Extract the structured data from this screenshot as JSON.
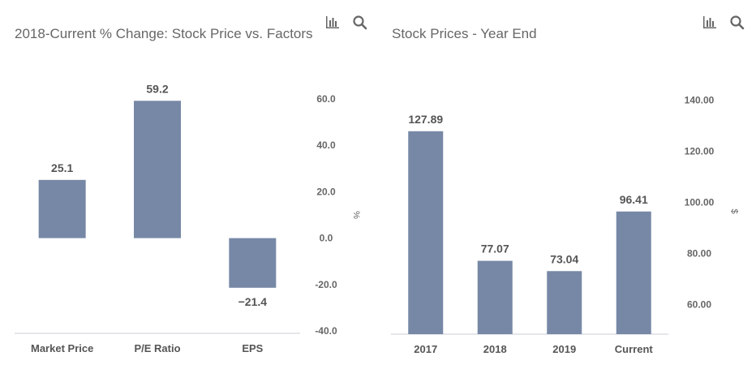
{
  "charts": [
    {
      "title": "2018-Current % Change: Stock Price vs. Factors",
      "icons": [
        "bar-chart-icon",
        "search-icon"
      ]
    },
    {
      "title": "Stock Prices - Year End",
      "icons": [
        "bar-chart-icon",
        "search-icon"
      ]
    }
  ],
  "colors": {
    "bar": "#7788a6",
    "axis": "#c8cdd6",
    "label": "#555555",
    "tick": "#666666",
    "icon": "#666666"
  },
  "chart_data": [
    {
      "type": "bar",
      "title": "2018-Current % Change: Stock Price vs. Factors",
      "categories": [
        "Market Price",
        "P/E Ratio",
        "EPS"
      ],
      "values": [
        25.1,
        59.2,
        -21.4
      ],
      "value_labels": [
        "25.1",
        "59.2",
        "−21.4"
      ],
      "xlabel": "",
      "ylabel": "%",
      "ylim": [
        -40,
        60
      ],
      "yticks": [
        -40,
        -20,
        0,
        20,
        40,
        60
      ],
      "ytick_labels": [
        "-40.0",
        "-20.0",
        "0.0",
        "20.0",
        "40.0",
        "60.0"
      ],
      "y_axis_side": "right",
      "grid": false,
      "legend": "none"
    },
    {
      "type": "bar",
      "title": "Stock Prices - Year End",
      "categories": [
        "2017",
        "2018",
        "2019",
        "Current"
      ],
      "values": [
        127.89,
        77.07,
        73.04,
        96.41
      ],
      "value_labels": [
        "127.89",
        "77.07",
        "73.04",
        "96.41"
      ],
      "xlabel": "",
      "ylabel": "$",
      "ylim": [
        48,
        145
      ],
      "yticks": [
        60,
        80,
        100,
        120,
        140
      ],
      "ytick_labels": [
        "60.00",
        "80.00",
        "100.00",
        "120.00",
        "140.00"
      ],
      "y_axis_side": "right",
      "grid": false,
      "legend": "none"
    }
  ]
}
